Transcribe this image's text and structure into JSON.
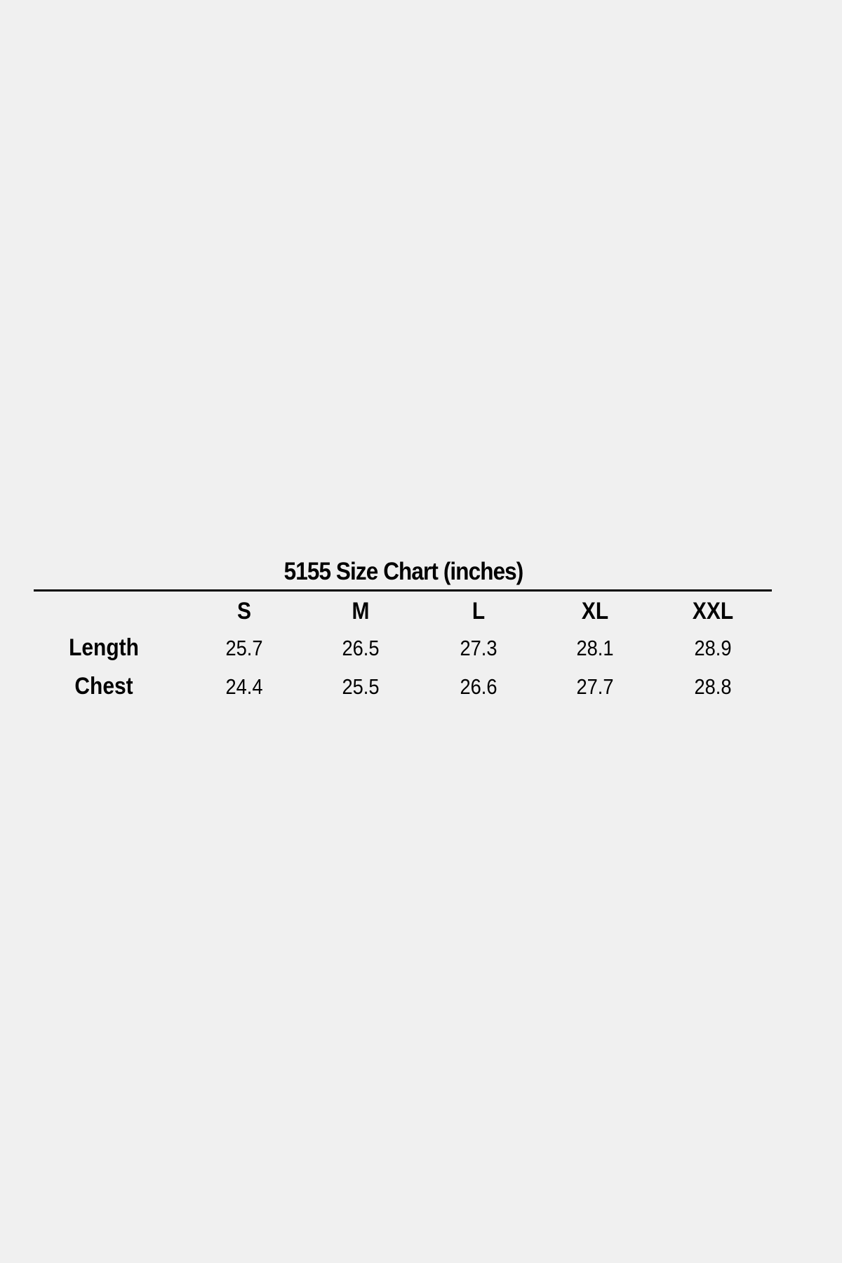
{
  "title": "5155 Size Chart (inches)",
  "table": {
    "columns": [
      "S",
      "M",
      "L",
      "XL",
      "XXL"
    ],
    "rows": [
      {
        "label": "Length",
        "values": [
          "25.7",
          "26.5",
          "27.3",
          "28.1",
          "28.9"
        ]
      },
      {
        "label": "Chest",
        "values": [
          "24.4",
          "25.5",
          "26.6",
          "27.7",
          "28.8"
        ]
      }
    ]
  }
}
